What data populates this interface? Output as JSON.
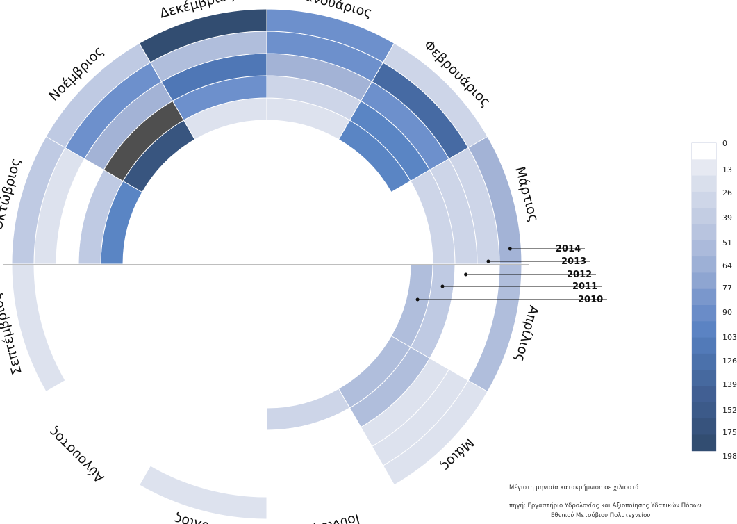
{
  "chart_data": {
    "type": "radial heatmap",
    "months": [
      "Ιανουάριος",
      "Φεβρουάριος",
      "Μάρτιος",
      "Απρίλιος",
      "Μάιος",
      "Ιούνιος",
      "Ιούλιος",
      "Αύγουστος",
      "Σεπτέμβριος",
      "Οκτώβριος",
      "Νοέμβριος",
      "Δεκέμβριος"
    ],
    "years": [
      "2010",
      "2011",
      "2012",
      "2013",
      "2014"
    ],
    "values": {
      "2010": [
        20,
        112,
        5,
        55,
        60,
        30,
        8,
        5,
        10,
        115,
        175,
        20
      ],
      "2011": [
        30,
        125,
        28,
        50,
        60,
        8,
        8,
        5,
        5,
        40,
        220,
        90
      ],
      "2012": [
        70,
        95,
        38,
        8,
        25,
        8,
        5,
        5,
        5,
        8,
        70,
        130
      ],
      "2013": [
        98,
        140,
        30,
        8,
        25,
        10,
        8,
        5,
        5,
        25,
        100,
        55
      ],
      "2014": [
        90,
        30,
        64,
        60,
        18,
        10,
        20,
        5,
        20,
        50,
        40,
        198
      ]
    },
    "legend_ticks": [
      0,
      13,
      26,
      39,
      51,
      64,
      77,
      90,
      103,
      126,
      139,
      152,
      175,
      198
    ],
    "color_scale": [
      "#ffffff",
      "#dde2ee",
      "#cdd5e8",
      "#bfcae3",
      "#b0bedc",
      "#a3b3d6",
      "#95a9d1",
      "#6d90cc",
      "#5a85c4",
      "#4f77b6",
      "#466aa3",
      "#3e5e91",
      "#38557f",
      "#324d71"
    ],
    "overflow_color": "#4f4f4f"
  },
  "footer": {
    "title": "Μέγιστη μηνιαία κατακρήμνιση σε χιλιοστά",
    "source_line1": "πηγή: Εργαστήριο  Υδρολογίας και Αξιοποίησης Υδατικών Πόρων",
    "source_line2": "Εθνικού Μετσόβιου Πολυτεχνείου"
  }
}
